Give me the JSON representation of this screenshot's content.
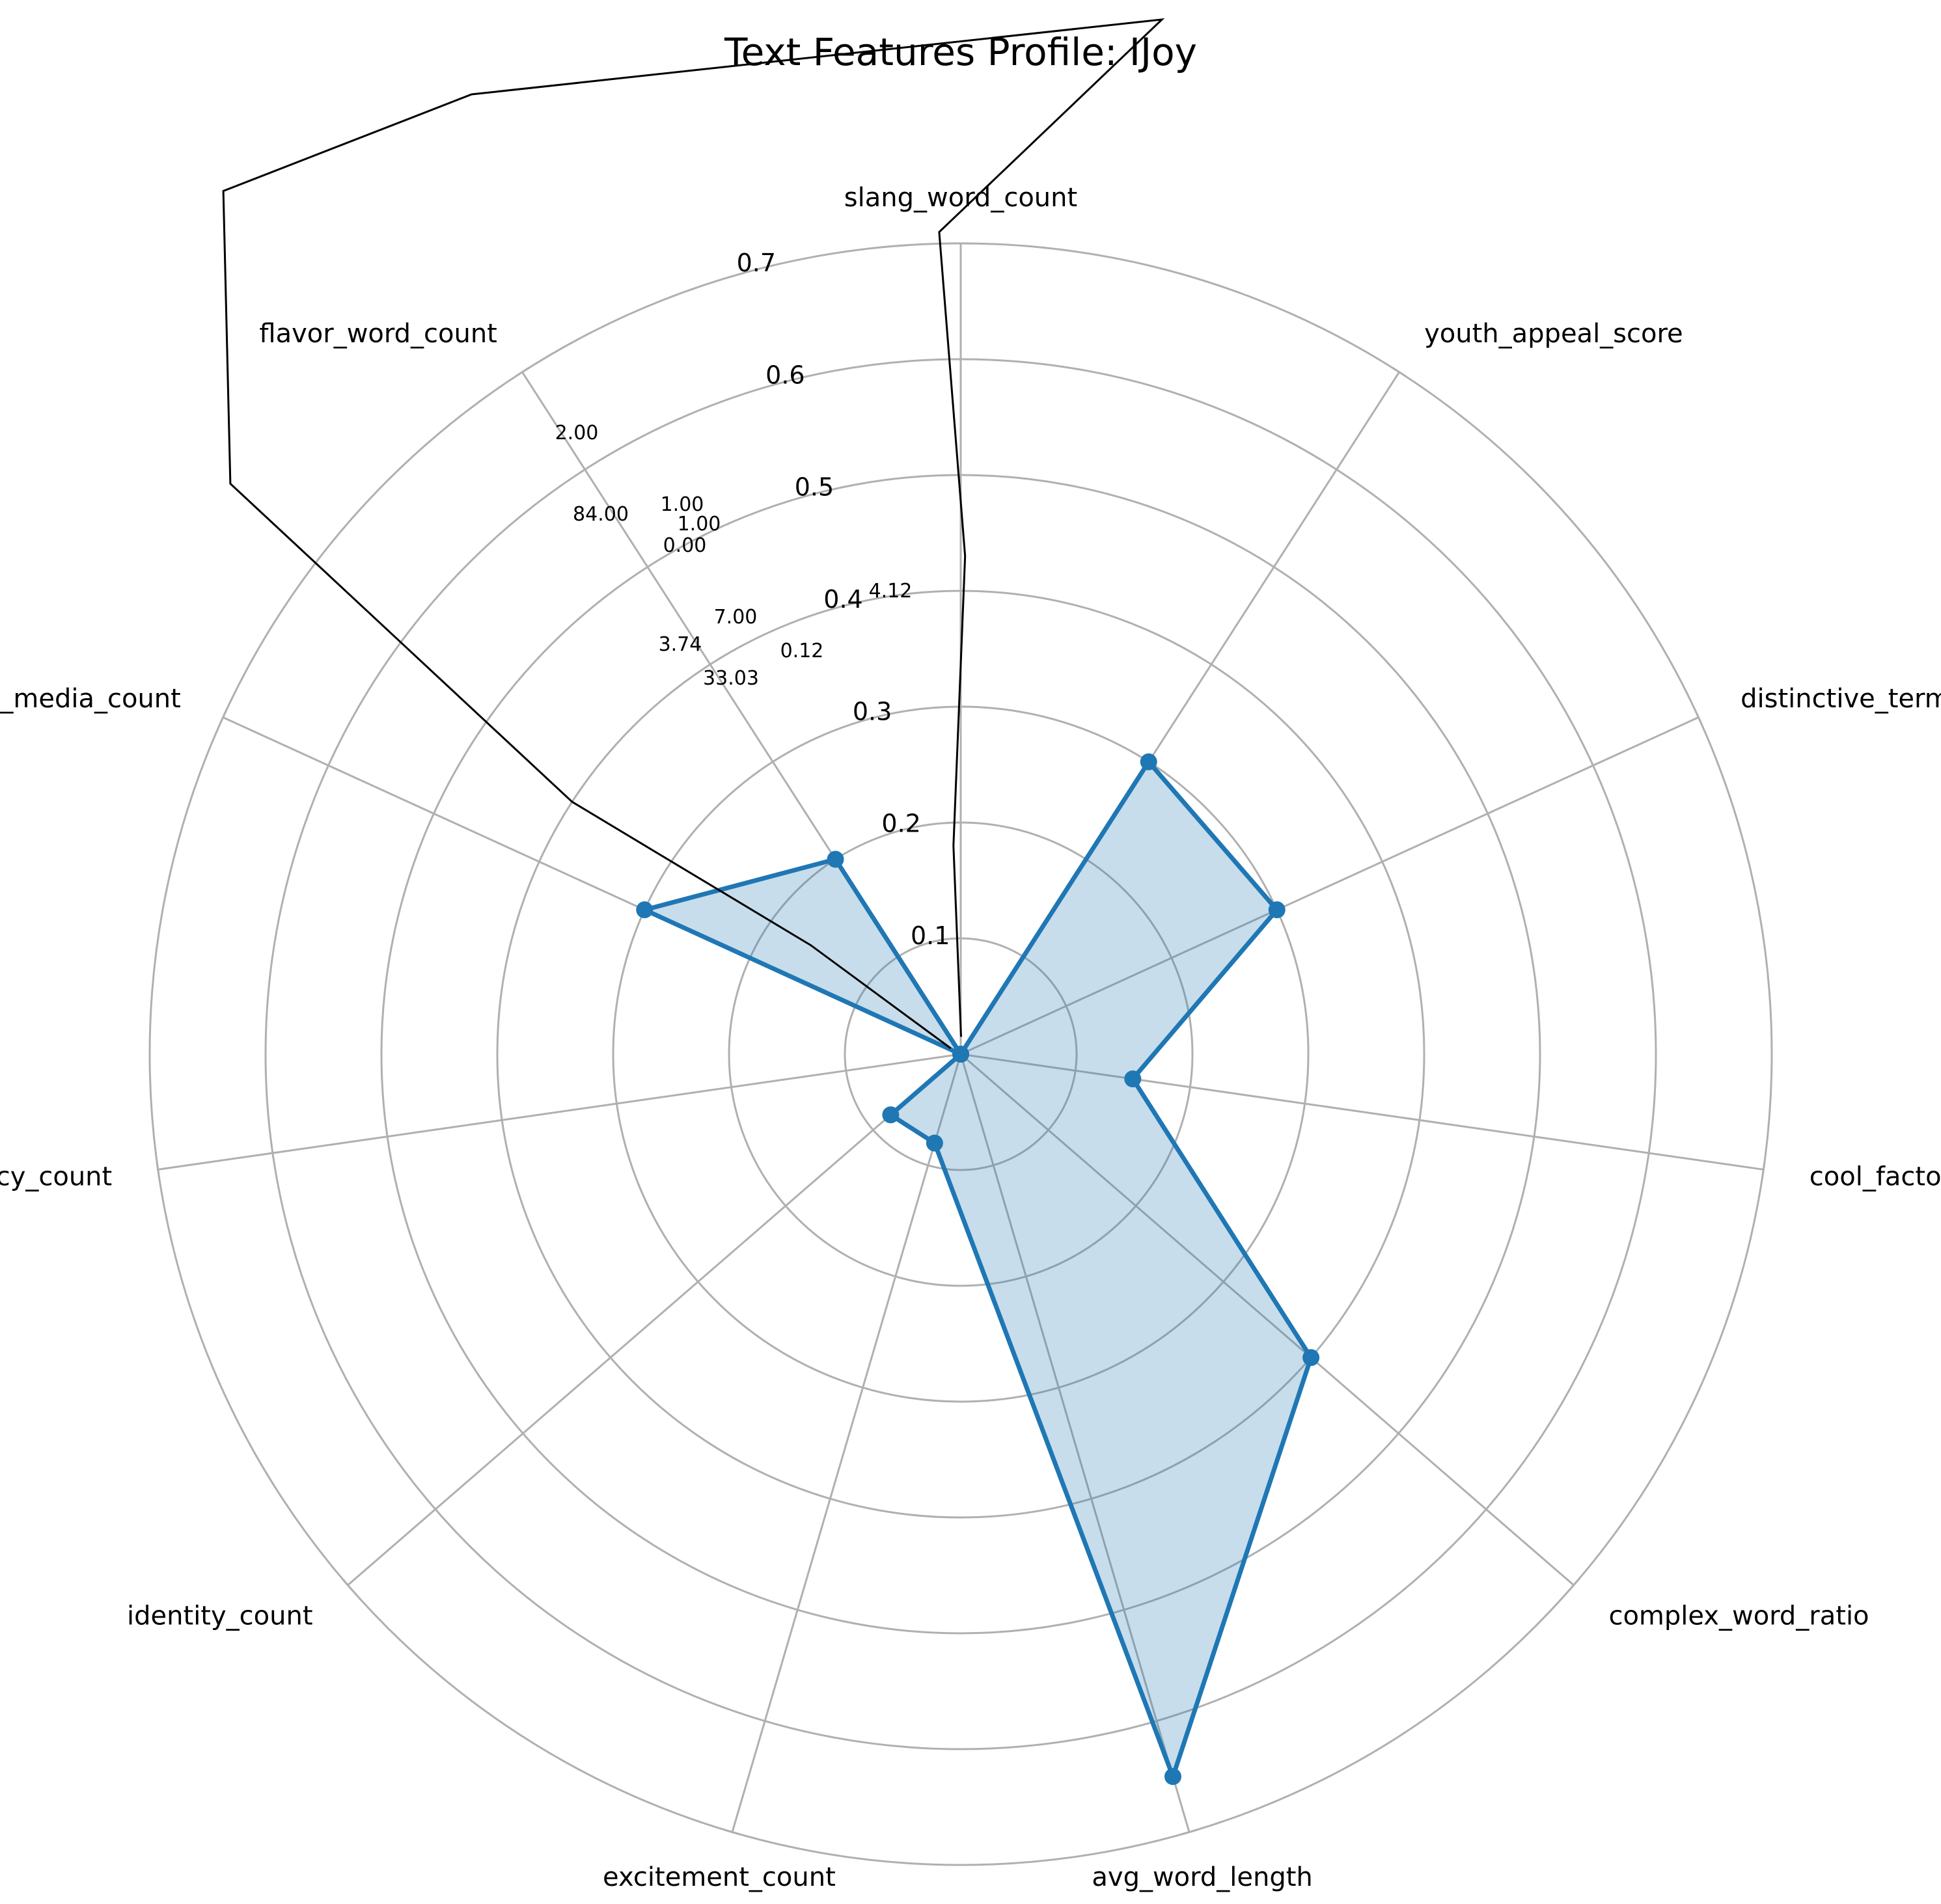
{
  "chart_data": {
    "type": "radar",
    "title": "Text Features Profile: IJoy",
    "categories": [
      "slang_word_count",
      "youth_appeal_score",
      "distinctive_term_score",
      "cool_factor_count",
      "complex_word_ratio",
      "avg_word_length",
      "excitement_count",
      "identity_count",
      "urgency_count",
      "social_media_count",
      "flavor_word_count"
    ],
    "r_ticks": [
      "0.1",
      "0.2",
      "0.3",
      "0.4",
      "0.5",
      "0.6",
      "0.7"
    ],
    "r_max": 0.7,
    "series": [
      {
        "values": [
          0.0,
          0.3,
          0.3,
          0.15,
          0.4,
          0.65,
          0.08,
          0.08,
          0.0,
          0.3,
          0.2
        ],
        "color": "#1f77b4"
      }
    ],
    "raw_value_labels": [
      "4.12",
      "0.12",
      "7.00",
      "0.00",
      "1.00",
      "1.00",
      "84.00",
      "2.00",
      "3.74",
      "33.03"
    ],
    "overlay_polyline": [
      {
        "theta_deg": 89.0,
        "r": 0.015
      },
      {
        "theta_deg": 92.0,
        "r": 0.18
      },
      {
        "theta_deg": 89.5,
        "r": 0.43
      },
      {
        "theta_deg": 91.5,
        "r": 0.71
      },
      {
        "theta_deg": 79.0,
        "r": 0.91
      },
      {
        "theta_deg": 117.0,
        "r": 0.93
      },
      {
        "theta_deg": 130.5,
        "r": 0.98
      },
      {
        "theta_deg": 142.0,
        "r": 0.8
      },
      {
        "theta_deg": 147.0,
        "r": 0.4
      },
      {
        "theta_deg": 144.0,
        "r": 0.16
      },
      {
        "theta_deg": 149.5,
        "r": 0.01
      }
    ],
    "grid": true
  }
}
